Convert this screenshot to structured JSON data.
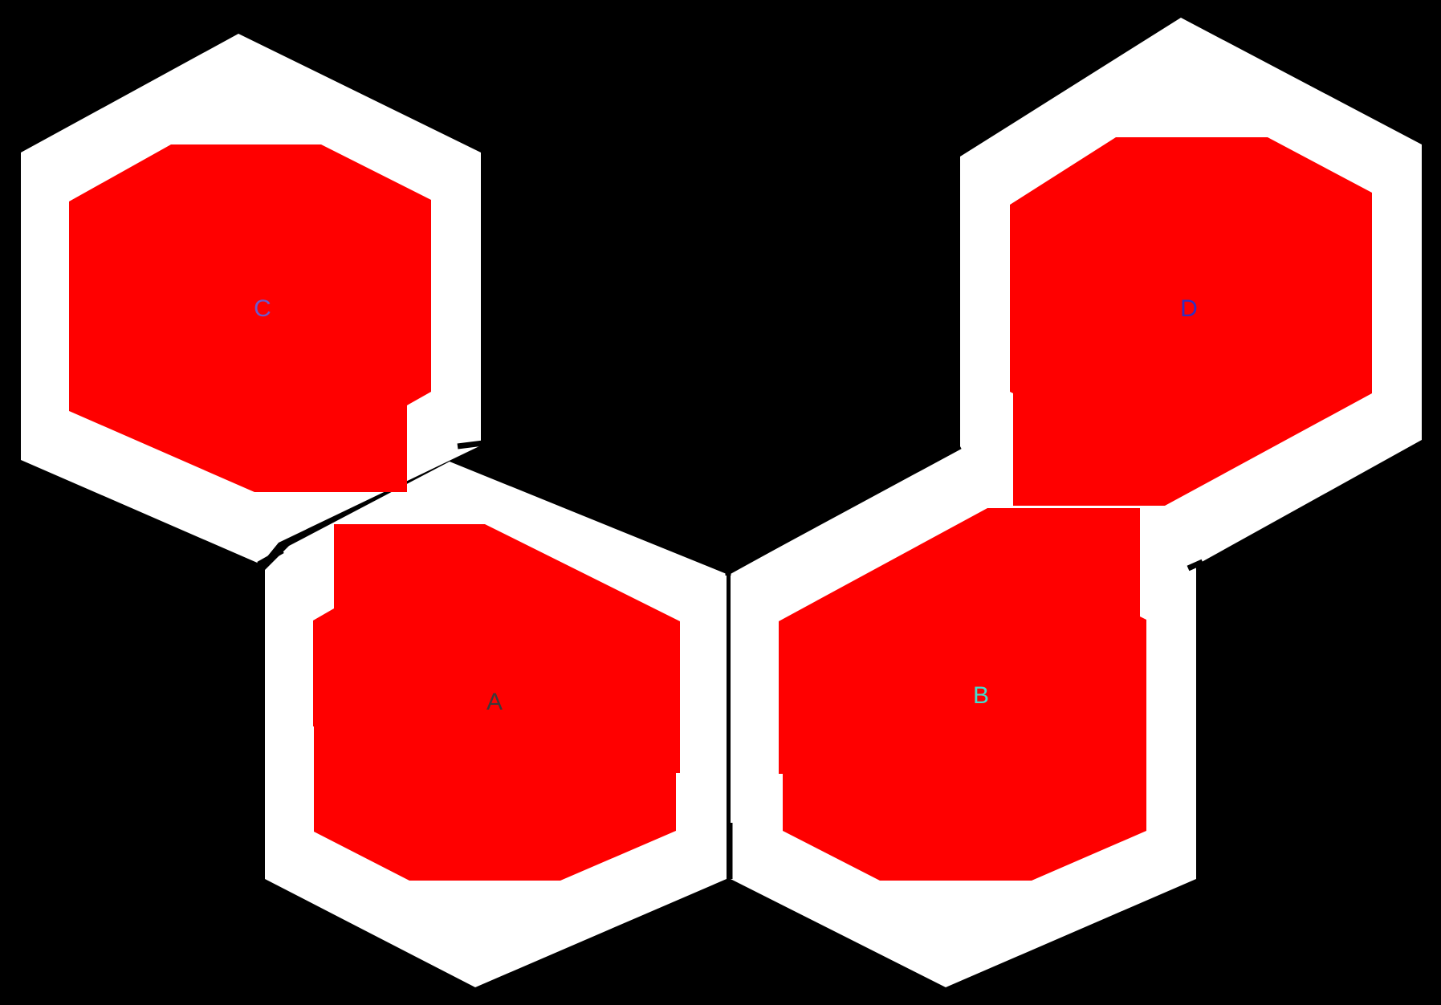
{
  "diagram": {
    "background_color": "#000000",
    "outline_color": "#ffffff",
    "fill_color": "#ff0000",
    "cells": [
      {
        "id": "A",
        "label": "A",
        "label_color": "#3a3a3a"
      },
      {
        "id": "B",
        "label": "B",
        "label_color": "#40e0d0"
      },
      {
        "id": "C",
        "label": "C",
        "label_color": "#6a5acd"
      },
      {
        "id": "D",
        "label": "D",
        "label_color": "#3030c0"
      }
    ]
  }
}
